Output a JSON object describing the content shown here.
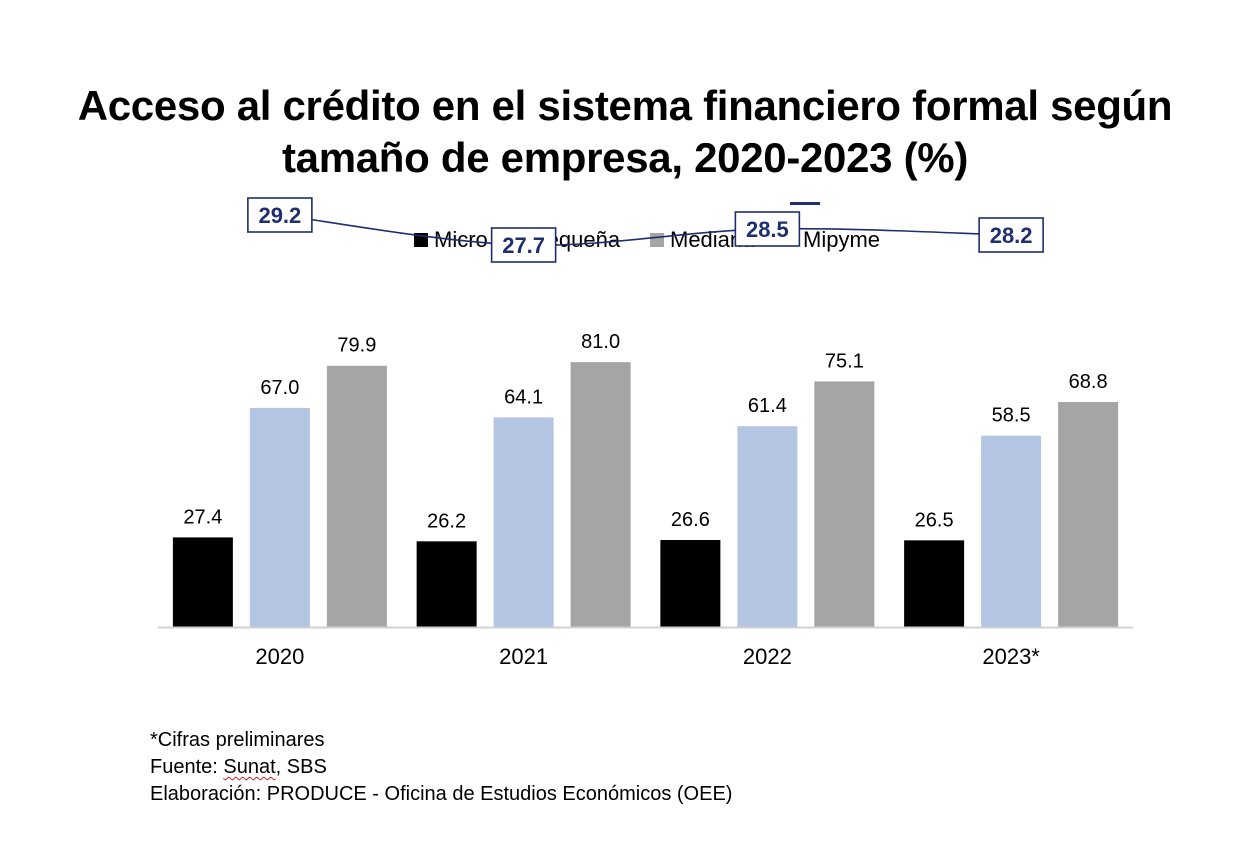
{
  "chart_data": {
    "type": "bar",
    "title_lines": [
      "Acceso al crédito en el sistema financiero formal según",
      "tamaño de empresa, 2020-2023 (%)"
    ],
    "categories": [
      "2020",
      "2021",
      "2022",
      "2023*"
    ],
    "series": [
      {
        "name": "Micro",
        "kind": "bar",
        "color": "#000000",
        "values": [
          27.4,
          26.2,
          26.6,
          26.5
        ],
        "labels": [
          "27.4",
          "26.2",
          "26.6",
          "26.5"
        ]
      },
      {
        "name": "Pequeña",
        "kind": "bar",
        "color": "#b4c5e3",
        "values": [
          67.0,
          64.1,
          61.4,
          58.5
        ],
        "labels": [
          "67.0",
          "64.1",
          "61.4",
          "58.5"
        ]
      },
      {
        "name": "Mediana",
        "kind": "bar",
        "color": "#a5a5a5",
        "values": [
          79.9,
          81.0,
          75.1,
          68.8
        ],
        "labels": [
          "79.9",
          "81.0",
          "75.1",
          "68.8"
        ]
      },
      {
        "name": "Mipyme",
        "kind": "line",
        "color": "#1f2f6e",
        "values": [
          29.2,
          27.7,
          28.5,
          28.2
        ],
        "labels": [
          "29.2",
          "27.7",
          "28.5",
          "28.2"
        ]
      }
    ],
    "ylim": [
      0,
      100
    ],
    "grid": false,
    "legend_position": "top",
    "notes": [
      "*Cifras preliminares"
    ],
    "source_prefix": "Fuente: ",
    "source_sunat": "Sunat",
    "source_suffix": ", SBS",
    "credit": "Elaboración: PRODUCE - Oficina de Estudios Económicos (OEE)"
  }
}
